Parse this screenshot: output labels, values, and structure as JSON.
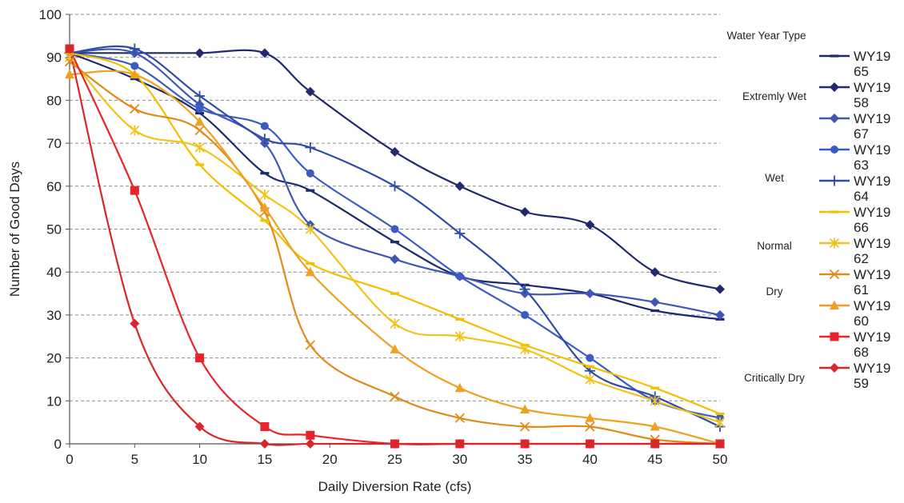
{
  "chart_data": {
    "type": "line",
    "xlabel": "Daily Diversion Rate (cfs)",
    "ylabel": "Number of Good Days",
    "xlim": [
      0,
      50
    ],
    "ylim": [
      0,
      100
    ],
    "xticks": [
      0,
      5,
      10,
      15,
      20,
      25,
      30,
      35,
      40,
      45,
      50
    ],
    "yticks": [
      0,
      10,
      20,
      30,
      40,
      50,
      60,
      70,
      80,
      90,
      100
    ],
    "grid": "horizontal dashed",
    "legend_placement": "right",
    "legend_title": "Water Year Type",
    "groups": [
      {
        "label": "Extremly Wet",
        "series": [
          "WY1965",
          "WY1958"
        ]
      },
      {
        "label": "Wet",
        "series": [
          "WY1967",
          "WY1963",
          "WY1964"
        ]
      },
      {
        "label": "Normal",
        "series": [
          "WY1966",
          "WY1962"
        ]
      },
      {
        "label": "Dry",
        "series": [
          "WY1961",
          "WY1960"
        ]
      },
      {
        "label": "Critically Dry",
        "series": [
          "WY1968",
          "WY1959"
        ]
      }
    ],
    "series": [
      {
        "name": "WY1965",
        "legend_lines": [
          "WY19",
          "65"
        ],
        "color": "#1b2a6e",
        "marker": "dash",
        "x": [
          0,
          5,
          10,
          15,
          18.5,
          25,
          30,
          35,
          40,
          45,
          50
        ],
        "y": [
          91,
          85,
          77,
          63,
          59,
          47,
          39,
          37,
          35,
          31,
          29
        ]
      },
      {
        "name": "WY1958",
        "legend_lines": [
          "WY19",
          "58"
        ],
        "color": "#22296f",
        "marker": "diamond",
        "x": [
          0,
          5,
          10,
          15,
          18.5,
          25,
          30,
          35,
          40,
          45,
          50
        ],
        "y": [
          91,
          91,
          91,
          91,
          82,
          68,
          60,
          54,
          51,
          40,
          36
        ]
      },
      {
        "name": "WY1967",
        "legend_lines": [
          "WY19",
          "67"
        ],
        "color": "#3f57b5",
        "marker": "diamond",
        "x": [
          0,
          5,
          10,
          15,
          18.5,
          25,
          30,
          35,
          40,
          45,
          50
        ],
        "y": [
          91,
          91,
          79,
          70,
          51,
          43,
          39,
          35,
          35,
          33,
          30
        ]
      },
      {
        "name": "WY1963",
        "legend_lines": [
          "WY19",
          "63"
        ],
        "color": "#3a5cc2",
        "marker": "circle",
        "x": [
          0,
          5,
          10,
          15,
          18.5,
          25,
          30,
          35,
          40,
          45,
          50
        ],
        "y": [
          91,
          88,
          78,
          74,
          63,
          50,
          39,
          30,
          20,
          10,
          6
        ]
      },
      {
        "name": "WY1964",
        "legend_lines": [
          "WY19",
          "64"
        ],
        "color": "#2f4ba6",
        "marker": "plus",
        "x": [
          0,
          5,
          10,
          15,
          18.5,
          25,
          30,
          35,
          40,
          45,
          50
        ],
        "y": [
          91,
          92,
          81,
          71,
          69,
          60,
          49,
          36,
          17,
          11,
          4
        ]
      },
      {
        "name": "WY1966",
        "legend_lines": [
          "WY19",
          "66"
        ],
        "color": "#f2c000",
        "marker": "dash",
        "x": [
          0,
          5,
          10,
          15,
          18.5,
          25,
          30,
          35,
          40,
          45,
          50
        ],
        "y": [
          91,
          86,
          65,
          52,
          42,
          35,
          29,
          23,
          18,
          13,
          7
        ]
      },
      {
        "name": "WY1962",
        "legend_lines": [
          "WY19",
          "62"
        ],
        "color": "#f0c418",
        "marker": "asterisk",
        "x": [
          0,
          5,
          10,
          15,
          18.5,
          25,
          30,
          35,
          40,
          45,
          50
        ],
        "y": [
          90,
          73,
          69,
          58,
          50,
          28,
          25,
          22,
          15,
          10,
          5
        ]
      },
      {
        "name": "WY1961",
        "legend_lines": [
          "WY19",
          "61"
        ],
        "color": "#e08a1a",
        "marker": "x",
        "x": [
          0,
          5,
          10,
          15,
          18.5,
          25,
          30,
          35,
          40,
          45,
          50
        ],
        "y": [
          89,
          78,
          73,
          54,
          23,
          11,
          6,
          4,
          4,
          1,
          0
        ]
      },
      {
        "name": "WY1960",
        "legend_lines": [
          "WY19",
          "60"
        ],
        "color": "#f0a020",
        "marker": "triangle",
        "x": [
          0,
          5,
          10,
          15,
          18.5,
          25,
          30,
          35,
          40,
          45,
          50
        ],
        "y": [
          86,
          86,
          75,
          55,
          40,
          22,
          13,
          8,
          6,
          4,
          0
        ]
      },
      {
        "name": "WY1968",
        "legend_lines": [
          "WY19",
          "68"
        ],
        "color": "#e8242a",
        "marker": "square",
        "x": [
          0,
          5,
          10,
          15,
          18.5,
          25,
          30,
          35,
          40,
          45,
          50
        ],
        "y": [
          92,
          59,
          20,
          4,
          2,
          0,
          0,
          0,
          0,
          0,
          0
        ]
      },
      {
        "name": "WY1959",
        "legend_lines": [
          "WY19",
          "59"
        ],
        "color": "#d8262d",
        "marker": "diamond",
        "x": [
          0,
          5,
          10,
          15,
          18.5,
          25,
          30,
          35,
          40,
          45,
          50
        ],
        "y": [
          92,
          28,
          4,
          0,
          0,
          0,
          0,
          0,
          0,
          0,
          0
        ]
      }
    ]
  }
}
